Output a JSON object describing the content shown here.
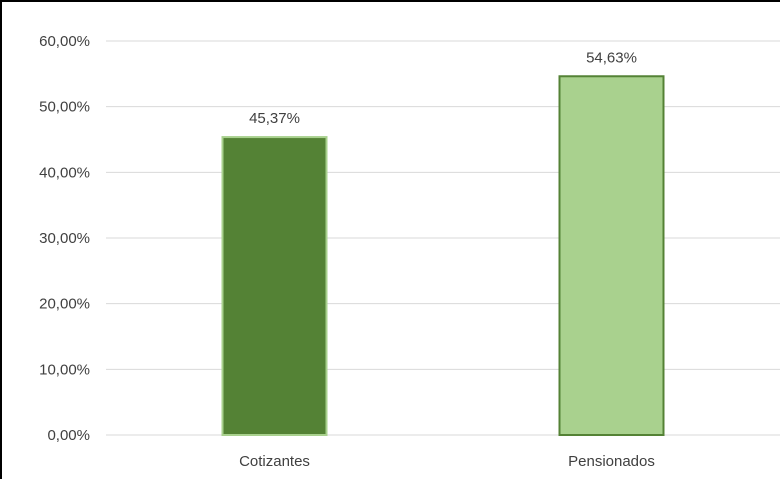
{
  "chart_data": {
    "type": "bar",
    "title": "",
    "xlabel": "",
    "ylabel": "",
    "categories": [
      "Cotizantes",
      "Pensionados"
    ],
    "values": [
      45.37,
      54.63
    ],
    "data_labels": [
      "45,37%",
      "54,63%"
    ],
    "ylim": [
      0,
      60
    ],
    "yticks": [
      0,
      10,
      20,
      30,
      40,
      50,
      60
    ],
    "ytick_labels": [
      "0,00%",
      "10,00%",
      "20,00%",
      "30,00%",
      "40,00%",
      "50,00%",
      "60,00%"
    ],
    "grid": true,
    "legend": "none",
    "colors": {
      "bars": [
        "#548235",
        "#a9d18e"
      ],
      "bar_borders": [
        "#a9d18e",
        "#548235"
      ],
      "grid": "#d9d9d9",
      "text": "#404040"
    }
  }
}
